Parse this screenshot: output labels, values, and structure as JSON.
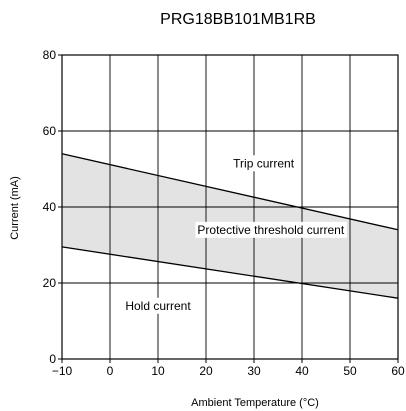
{
  "chart_data": {
    "type": "line",
    "title": "PRG18BB101MB1RB",
    "xlabel": "Ambient Temperature (°C)",
    "ylabel": "Current (mA)",
    "xlim": [
      -10,
      60
    ],
    "ylim": [
      0,
      80
    ],
    "x_ticks": [
      -10,
      0,
      10,
      20,
      30,
      40,
      50,
      60
    ],
    "y_ticks": [
      0,
      20,
      40,
      60,
      80
    ],
    "grid": true,
    "legend": "none",
    "series": [
      {
        "name": "Trip current",
        "x": [
          -10,
          60
        ],
        "y": [
          54,
          34
        ]
      },
      {
        "name": "Hold current",
        "x": [
          -10,
          60
        ],
        "y": [
          29.5,
          16
        ]
      }
    ],
    "region": {
      "name": "Protective threshold current",
      "between": [
        "Hold current",
        "Trip current"
      ],
      "fill": "#e3e3e3"
    },
    "annotations": [
      {
        "text": "Trip current",
        "x": 32,
        "y": 51.5
      },
      {
        "text": "Protective threshold current",
        "x": 33.5,
        "y": 34
      },
      {
        "text": "Hold current",
        "x": 10,
        "y": 14
      }
    ],
    "colors": {
      "line": "#000000",
      "grid": "#000000",
      "fill": "#e3e3e3"
    }
  }
}
